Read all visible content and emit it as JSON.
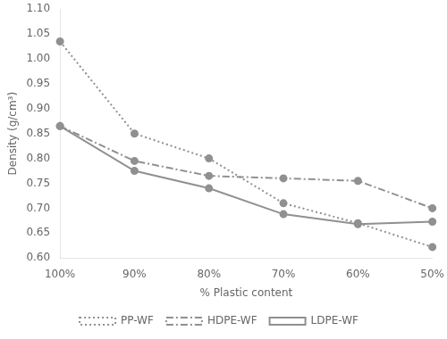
{
  "chart_data": {
    "type": "line",
    "xlabel": "% Plastic content",
    "ylabel": "Density (g/cm³)",
    "categories": [
      "100%",
      "90%",
      "80%",
      "70%",
      "60%",
      "50%"
    ],
    "series": [
      {
        "name": "PP-WF",
        "color": "#909090",
        "line_style": "dotted",
        "marker": "circle",
        "values": [
          1.035,
          0.85,
          0.8,
          0.71,
          0.67,
          0.622
        ]
      },
      {
        "name": "HDPE-WF",
        "color": "#909090",
        "line_style": "dashdot",
        "marker": "circle",
        "values": [
          0.865,
          0.795,
          0.765,
          0.76,
          0.755,
          0.7
        ]
      },
      {
        "name": "LDPE-WF",
        "color": "#909090",
        "line_style": "solid",
        "marker": "circle",
        "values": [
          0.865,
          0.775,
          0.74,
          0.688,
          0.668,
          0.673
        ]
      }
    ],
    "ylim": [
      0.6,
      1.1
    ],
    "yticks": [
      {
        "value": 0.6,
        "label": "0.60"
      },
      0.65,
      {
        "value": 0.7,
        "label": "0.70"
      },
      0.75,
      {
        "value": 0.8,
        "label": "0.80"
      },
      0.85,
      {
        "value": 0.9,
        "label": "0.90"
      },
      0.95,
      {
        "value": 1.0,
        "label": "1.00"
      },
      1.05,
      {
        "value": 1.1,
        "label": "1.10"
      }
    ],
    "grid": false,
    "legend": "bottom"
  }
}
